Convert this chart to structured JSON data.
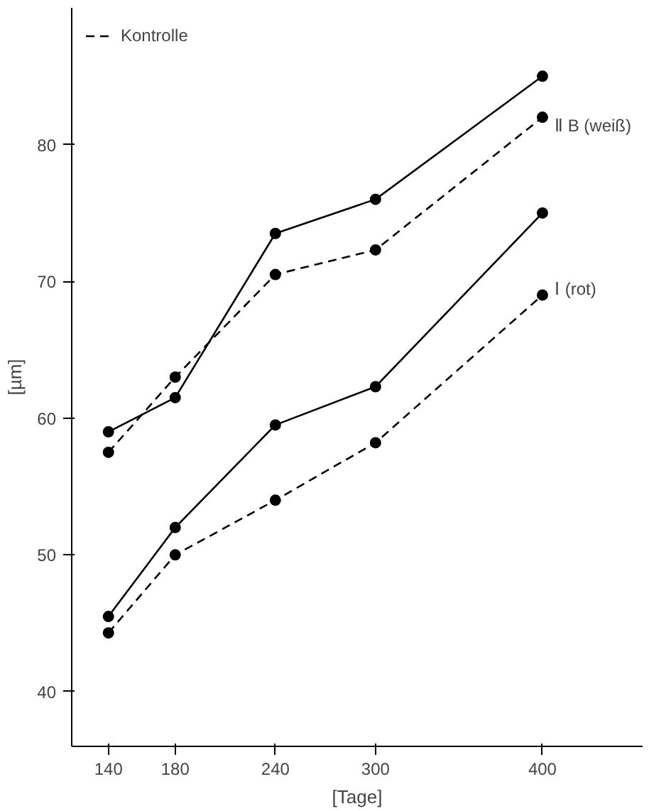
{
  "chart_data": {
    "type": "line",
    "ylabel": "[µm]",
    "xlabel": "[Tage]",
    "x": [
      140,
      180,
      240,
      300,
      400
    ],
    "series": [
      {
        "color": "#000000",
        "line_style": "solid",
        "values": [
          59,
          61.5,
          73.5,
          76,
          85
        ]
      },
      {
        "name": "Kontrolle",
        "color": "#000000",
        "line_style": "dashed",
        "values": [
          57.5,
          63,
          70.5,
          72.3,
          82
        ]
      },
      {
        "color": "#000000",
        "line_style": "solid",
        "values": [
          45.5,
          52,
          59.5,
          62.3,
          75
        ]
      },
      {
        "color": "#000000",
        "line_style": "dashed",
        "values": [
          44.3,
          50,
          54,
          58.2,
          69
        ]
      }
    ],
    "marker": "circle",
    "xlim": [
      118,
      460
    ],
    "ylim": [
      36,
      90
    ],
    "xticks": [
      140,
      180,
      240,
      300,
      400
    ],
    "yticks": [
      40,
      50,
      60,
      70,
      80
    ],
    "grid": false,
    "legend": "top left",
    "annotations": [
      "Ⅱ B (weiß)",
      "Ⅰ (rot)"
    ]
  }
}
